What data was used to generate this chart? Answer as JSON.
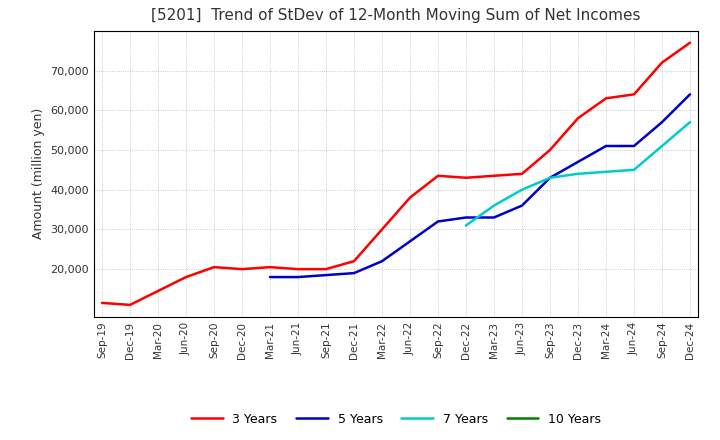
{
  "title": "[5201]  Trend of StDev of 12-Month Moving Sum of Net Incomes",
  "ylabel": "Amount (million yen)",
  "background_color": "#ffffff",
  "grid_color": "#aaaaaa",
  "ylim": [
    8000,
    80000
  ],
  "yticks": [
    20000,
    30000,
    40000,
    50000,
    60000,
    70000
  ],
  "x_labels": [
    "Sep-19",
    "Dec-19",
    "Mar-20",
    "Jun-20",
    "Sep-20",
    "Dec-20",
    "Mar-21",
    "Jun-21",
    "Sep-21",
    "Dec-21",
    "Mar-22",
    "Jun-22",
    "Sep-22",
    "Dec-22",
    "Mar-23",
    "Jun-23",
    "Sep-23",
    "Dec-23",
    "Mar-24",
    "Jun-24",
    "Sep-24",
    "Dec-24"
  ],
  "series": {
    "3 Years": {
      "color": "#ff0000",
      "data": [
        11500,
        11000,
        14500,
        18000,
        20500,
        20000,
        20500,
        20000,
        20000,
        22000,
        30000,
        38000,
        43500,
        43000,
        43500,
        44000,
        50000,
        58000,
        63000,
        64000,
        72000,
        77000
      ]
    },
    "5 Years": {
      "color": "#0000cc",
      "data": [
        null,
        null,
        null,
        null,
        null,
        null,
        18000,
        18000,
        18500,
        19000,
        22000,
        27000,
        32000,
        33000,
        33000,
        36000,
        43000,
        47000,
        51000,
        51000,
        57000,
        64000
      ]
    },
    "7 Years": {
      "color": "#00cccc",
      "data": [
        null,
        null,
        null,
        null,
        null,
        null,
        null,
        null,
        null,
        null,
        null,
        null,
        null,
        31000,
        36000,
        40000,
        43000,
        44000,
        44500,
        45000,
        51000,
        57000
      ]
    },
    "10 Years": {
      "color": "#008000",
      "data": [
        null,
        null,
        null,
        null,
        null,
        null,
        null,
        null,
        null,
        null,
        null,
        null,
        null,
        null,
        null,
        null,
        null,
        null,
        null,
        null,
        null,
        null
      ]
    }
  },
  "legend_order": [
    "3 Years",
    "5 Years",
    "7 Years",
    "10 Years"
  ]
}
